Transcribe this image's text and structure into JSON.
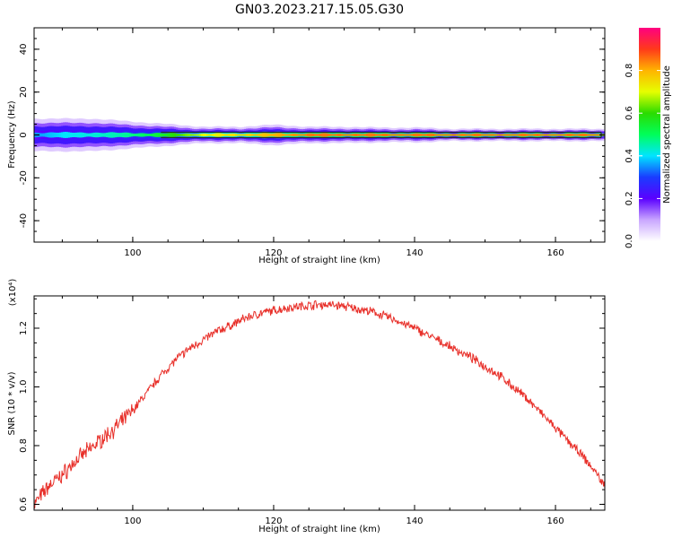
{
  "title": "GN03.2023.217.15.05.G30",
  "colors": {
    "snr_line": "#e8302a",
    "center_line": "#2a2a2a",
    "colormap": [
      "#ffffff",
      "#c9a6ff",
      "#5a00ff",
      "#1a3cff",
      "#00e5ff",
      "#00ff5a",
      "#2bdc00",
      "#e6ff00",
      "#ffb400",
      "#ff3a1a",
      "#ff0080"
    ]
  },
  "chart_data": [
    {
      "type": "heatmap",
      "xlabel": "Height of straight line (km)",
      "ylabel": "Frequency (Hz)",
      "xlim": [
        86,
        167
      ],
      "ylim": [
        -50,
        50
      ],
      "x_ticks": [
        100,
        120,
        140,
        160
      ],
      "y_ticks": [
        -40,
        -20,
        0,
        20,
        40
      ],
      "colorbar": {
        "label": "Normalized spectral amplitude",
        "range": [
          0,
          1
        ],
        "ticks": [
          "0.0",
          "0.2",
          "0.4",
          "0.6",
          "0.8"
        ]
      },
      "band": {
        "center_frequency_hz": 0,
        "half_width_hz": [
          4,
          4,
          4,
          3.5,
          3,
          2.5,
          2,
          2,
          2.5,
          2,
          2,
          1.8,
          1.8,
          1.5,
          1.5,
          1.5,
          1.5
        ],
        "amplitude": [
          0.35,
          0.4,
          0.42,
          0.45,
          0.5,
          0.6,
          0.7,
          0.75,
          0.8,
          0.85,
          0.85,
          0.85,
          0.85,
          0.85,
          0.85,
          0.85,
          0.85
        ],
        "x": [
          86,
          90,
          94,
          98,
          102,
          106,
          110,
          115,
          120,
          125,
          130,
          135,
          140,
          145,
          150,
          158,
          167
        ]
      }
    },
    {
      "type": "line",
      "xlabel": "Height of straight line (km)",
      "ylabel": "SNR (10 * v/v)",
      "y_multiplier": "(x10⁴)",
      "xlim": [
        86,
        167
      ],
      "ylim": [
        0.58,
        1.31
      ],
      "x_ticks": [
        100,
        120,
        140,
        160
      ],
      "y_ticks": [
        0.6,
        0.8,
        1.0,
        1.2
      ],
      "series": [
        {
          "x": [
            86,
            88,
            90,
            92,
            94,
            96,
            98,
            100,
            102,
            104,
            106,
            108,
            110,
            112,
            114,
            116,
            118,
            120,
            122,
            124,
            126,
            128,
            130,
            132,
            134,
            136,
            138,
            140,
            142,
            144,
            146,
            148,
            150,
            152,
            154,
            156,
            158,
            160,
            162,
            164,
            166,
            167
          ],
          "values": [
            0.6,
            0.66,
            0.7,
            0.75,
            0.79,
            0.83,
            0.87,
            0.92,
            0.98,
            1.04,
            1.09,
            1.13,
            1.16,
            1.19,
            1.21,
            1.235,
            1.25,
            1.26,
            1.27,
            1.275,
            1.28,
            1.28,
            1.275,
            1.265,
            1.255,
            1.24,
            1.22,
            1.2,
            1.175,
            1.15,
            1.125,
            1.1,
            1.07,
            1.04,
            1.0,
            0.96,
            0.91,
            0.86,
            0.81,
            0.76,
            0.7,
            0.66
          ]
        }
      ]
    }
  ]
}
